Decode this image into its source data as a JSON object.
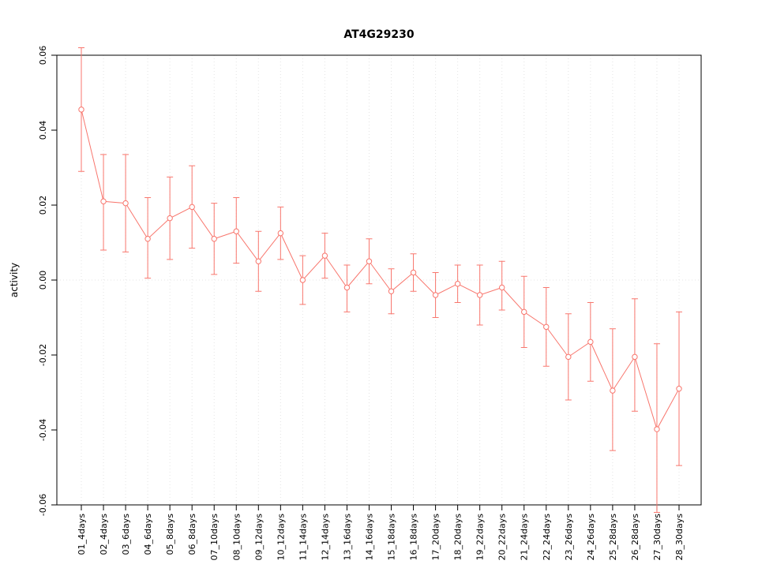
{
  "chart_data": {
    "type": "line",
    "title": "AT4G29230",
    "ylabel": "activity",
    "xlabel": "",
    "ylim": [
      -0.06,
      0.06
    ],
    "ytick_values": [
      -0.06,
      -0.04,
      -0.02,
      0,
      0.02,
      0.04,
      0.06
    ],
    "ytick_labels": [
      "-0.06",
      "-0.04",
      "-0.02",
      "0.00",
      "0.02",
      "0.04",
      "0.06"
    ],
    "grid": true,
    "legend": "none",
    "series_name": "activity",
    "series_color": "#f8766d",
    "grid_color": "#e4e4e4",
    "point_style": "open-circle",
    "error_bars": true,
    "categories": [
      "01_4days",
      "02_4days",
      "03_6days",
      "04_6days",
      "05_8days",
      "06_8days",
      "07_10days",
      "08_10days",
      "09_12days",
      "10_12days",
      "11_14days",
      "12_14days",
      "13_16days",
      "14_16days",
      "15_18days",
      "16_18days",
      "17_20days",
      "18_20days",
      "19_22days",
      "20_22days",
      "21_24days",
      "22_24days",
      "23_26days",
      "24_26days",
      "25_28days",
      "26_28days",
      "27_30days",
      "28_30days"
    ],
    "values": [
      0.0455,
      0.021,
      0.0205,
      0.011,
      0.0165,
      0.0195,
      0.011,
      0.013,
      0.005,
      0.0125,
      0.0,
      0.0065,
      -0.002,
      0.005,
      -0.003,
      0.002,
      -0.004,
      -0.001,
      -0.004,
      -0.002,
      -0.0085,
      -0.0125,
      -0.0205,
      -0.0165,
      -0.0295,
      -0.0205,
      -0.0398,
      -0.029
    ],
    "error_high": [
      0.062,
      0.0335,
      0.0335,
      0.022,
      0.0275,
      0.0305,
      0.0205,
      0.022,
      0.013,
      0.0195,
      0.0065,
      0.0125,
      0.004,
      0.011,
      0.003,
      0.007,
      0.002,
      0.004,
      0.004,
      0.005,
      0.001,
      -0.002,
      -0.009,
      -0.006,
      -0.013,
      -0.005,
      -0.017,
      -0.0085
    ],
    "error_low": [
      0.029,
      0.008,
      0.0075,
      0.0005,
      0.0055,
      0.0085,
      0.0015,
      0.0045,
      -0.003,
      0.0055,
      -0.0065,
      0.0005,
      -0.0085,
      -0.001,
      -0.009,
      -0.003,
      -0.01,
      -0.006,
      -0.012,
      -0.008,
      -0.018,
      -0.023,
      -0.032,
      -0.027,
      -0.0455,
      -0.035,
      -0.062,
      -0.0495
    ]
  }
}
